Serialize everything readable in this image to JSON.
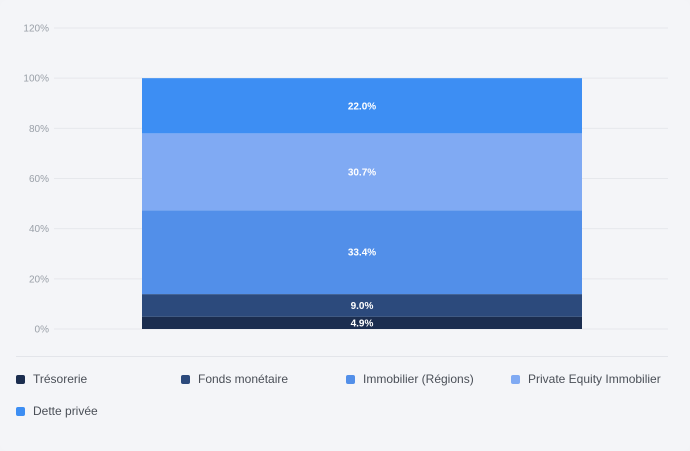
{
  "chart_data": {
    "type": "bar",
    "stacked": true,
    "categories": [
      ""
    ],
    "ylim": [
      0,
      120
    ],
    "yticks": [
      "0%",
      "20%",
      "40%",
      "60%",
      "80%",
      "100%",
      "120%"
    ],
    "ytick_values": [
      0,
      20,
      40,
      60,
      80,
      100,
      120
    ],
    "grid": true,
    "legend_position": "bottom",
    "series": [
      {
        "name": "Trésorerie",
        "values": [
          4.9
        ],
        "label": "4.9%",
        "color": "#1b2d4f"
      },
      {
        "name": "Fonds monétaire",
        "values": [
          9.0
        ],
        "label": "9.0%",
        "color": "#2c4a7c"
      },
      {
        "name": "Immobilier (Régions)",
        "values": [
          33.4
        ],
        "label": "33.4%",
        "color": "#528fe9"
      },
      {
        "name": "Private Equity Immobilier",
        "values": [
          30.7
        ],
        "label": "30.7%",
        "color": "#80aaf3"
      },
      {
        "name": "Dette privée",
        "values": [
          22.0
        ],
        "label": "22.0%",
        "color": "#3d8ef3"
      }
    ]
  }
}
